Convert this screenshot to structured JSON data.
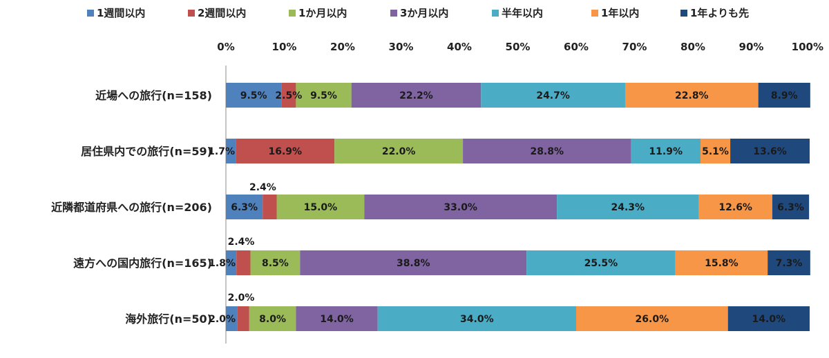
{
  "chart_data": {
    "type": "bar",
    "orientation": "horizontal",
    "stacked": true,
    "title": "",
    "xlabel": "",
    "ylabel": "",
    "xlim": [
      0,
      100
    ],
    "x_ticks": [
      "0%",
      "10%",
      "20%",
      "30%",
      "40%",
      "50%",
      "60%",
      "70%",
      "80%",
      "90%",
      "100%"
    ],
    "legend_position": "top",
    "grid": false,
    "categories": [
      "近場への旅行(n=158)",
      "居住県内での旅行(n=59)",
      "近隣都道府県への旅行(n=206)",
      "遠方への国内旅行(n=165)",
      "海外旅行(n=50)"
    ],
    "series": [
      {
        "name": "1週間以内",
        "color": "#4f81bd",
        "values": [
          9.5,
          1.7,
          6.3,
          1.8,
          2.0
        ],
        "labels": [
          "9.5%",
          "1.7%",
          "6.3%",
          "1.8%",
          "2.0%"
        ]
      },
      {
        "name": "2週間以内",
        "color": "#c0504d",
        "values": [
          2.5,
          16.9,
          2.4,
          2.4,
          2.0
        ],
        "labels": [
          "2.5%",
          "16.9%",
          "2.4%",
          "2.4%",
          "2.0%"
        ]
      },
      {
        "name": "1か月以内",
        "color": "#9bbb59",
        "values": [
          9.5,
          22.0,
          15.0,
          8.5,
          8.0
        ],
        "labels": [
          "9.5%",
          "22.0%",
          "15.0%",
          "8.5%",
          "8.0%"
        ]
      },
      {
        "name": "3か月以内",
        "color": "#8064a2",
        "values": [
          22.2,
          28.8,
          33.0,
          38.8,
          14.0
        ],
        "labels": [
          "22.2%",
          "28.8%",
          "33.0%",
          "38.8%",
          "14.0%"
        ]
      },
      {
        "name": "半年以内",
        "color": "#4bacc6",
        "values": [
          24.7,
          11.9,
          24.3,
          25.5,
          34.0
        ],
        "labels": [
          "24.7%",
          "11.9%",
          "24.3%",
          "25.5%",
          "34.0%"
        ]
      },
      {
        "name": "1年以内",
        "color": "#f79646",
        "values": [
          22.8,
          5.1,
          12.6,
          15.8,
          26.0
        ],
        "labels": [
          "22.8%",
          "5.1%",
          "12.6%",
          "15.8%",
          "26.0%"
        ]
      },
      {
        "name": "1年よりも先",
        "color": "#1f497d",
        "values": [
          8.9,
          13.6,
          6.3,
          7.3,
          14.0
        ],
        "labels": [
          "8.9%",
          "13.6%",
          "6.3%",
          "7.3%",
          "14.0%"
        ]
      }
    ]
  }
}
